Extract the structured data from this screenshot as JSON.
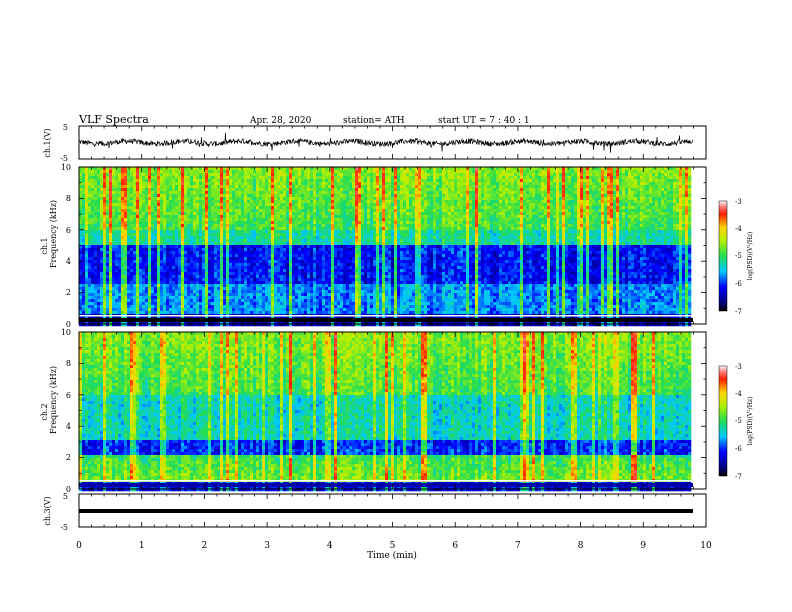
{
  "header": {
    "title": "VLF  Spectra",
    "date": "Apr. 28, 2020",
    "station": "station= ATH",
    "start_ut": "start  UT  =   7  : 40 : 1"
  },
  "colorbars": [
    {
      "label": "log(PSD)(V²/Hz)",
      "ticks": [
        "-3",
        "-4",
        "-5",
        "-6",
        "-7"
      ]
    },
    {
      "label": "log(PSD)(V²/Hz)",
      "ticks": [
        "-3",
        "-4",
        "-5",
        "-6",
        "-7"
      ]
    }
  ],
  "chart_data": [
    {
      "type": "line",
      "name": "ch1-waveform",
      "ylabel": "ch.1(V)",
      "ylim": [
        -5,
        5
      ],
      "y_ticks": [
        "5",
        "-5"
      ],
      "xlim": [
        0,
        10
      ]
    },
    {
      "type": "heatmap",
      "name": "ch1-spectrogram",
      "ylabel_top": "ch.1",
      "ylabel": "Frequency  (kHz)",
      "ylim": [
        0,
        10
      ],
      "y_ticks": [
        "0",
        "2",
        "4",
        "6",
        "8",
        "10"
      ],
      "xlim": [
        0,
        10
      ],
      "zlim": [
        -7,
        -3
      ]
    },
    {
      "type": "heatmap",
      "name": "ch2-spectrogram",
      "ylabel_top": "ch.2",
      "ylabel": "Frequency  (kHz)",
      "ylim": [
        0,
        10
      ],
      "y_ticks": [
        "0",
        "2",
        "4",
        "6",
        "8",
        "10"
      ],
      "xlim": [
        0,
        10
      ],
      "zlim": [
        -7,
        -3
      ]
    },
    {
      "type": "line",
      "name": "ch3-waveform",
      "ylabel": "ch.3(V)",
      "ylim": [
        -5,
        5
      ],
      "y_ticks": [
        "5",
        "-5"
      ],
      "xlim": [
        0,
        10
      ]
    }
  ],
  "x_axis": {
    "label": "Time  (min)",
    "ticks": [
      "0",
      "1",
      "2",
      "3",
      "4",
      "5",
      "6",
      "7",
      "8",
      "9",
      "10"
    ],
    "range": [
      0,
      10
    ]
  }
}
